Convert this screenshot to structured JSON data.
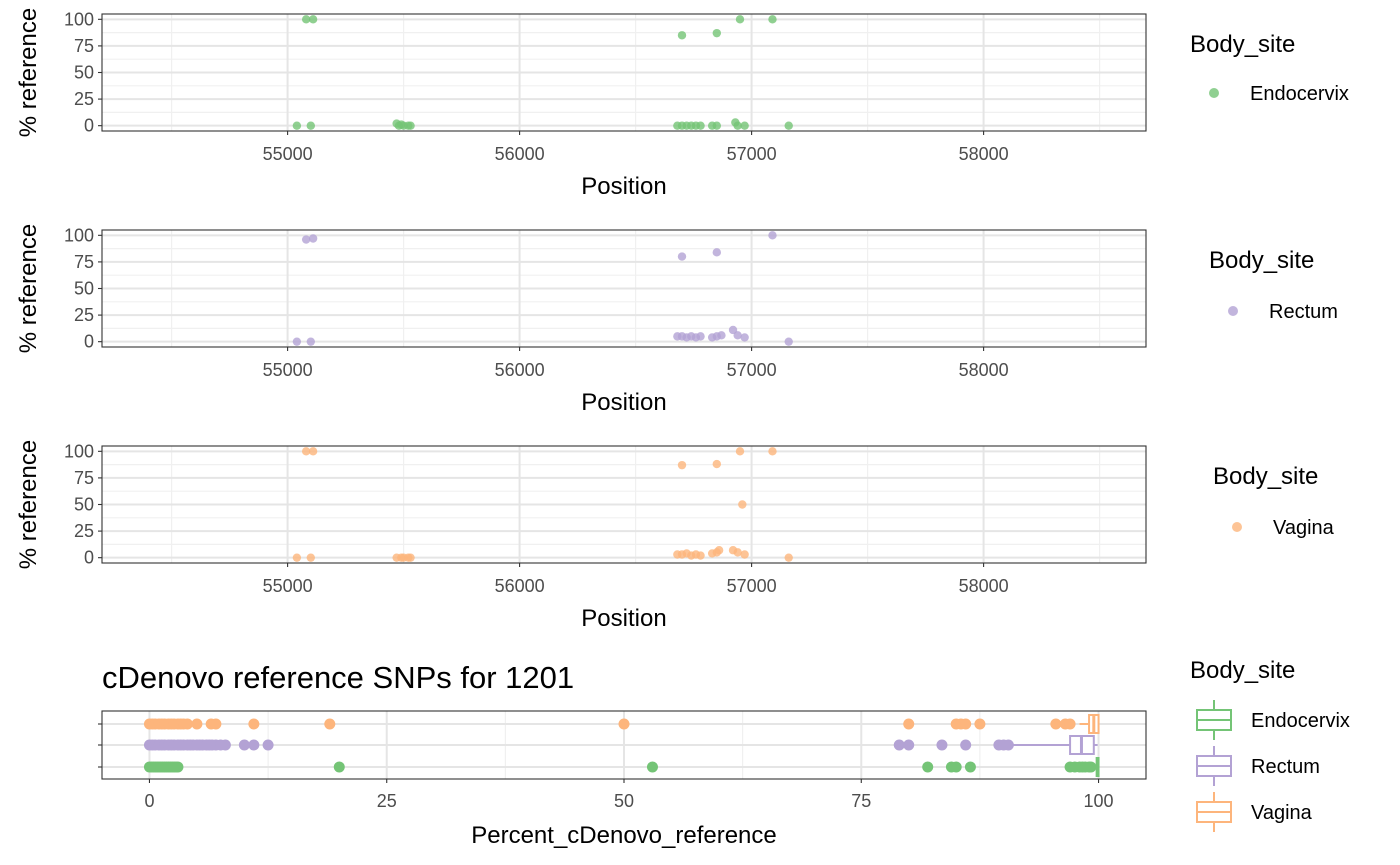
{
  "colors": {
    "Endocervix": "#74c476",
    "Rectum": "#b3a2d4",
    "Vagina": "#fdb57c",
    "grid_major": "#e5e5e5",
    "grid_minor": "#f0f0f0",
    "frame": "#333333"
  },
  "chart_data": [
    {
      "type": "scatter",
      "xlabel": "Position",
      "ylabel": "% reference",
      "xlim": [
        54200,
        58700
      ],
      "ylim": [
        -5,
        105
      ],
      "xticks": [
        "55000",
        "56000",
        "57000",
        "58000"
      ],
      "yticks": [
        "0",
        "25",
        "50",
        "75",
        "100"
      ],
      "legend_title": "Body_site",
      "series": [
        {
          "name": "Endocervix",
          "points": [
            [
              55080,
              100
            ],
            [
              55110,
              100
            ],
            [
              56700,
              85
            ],
            [
              56850,
              87
            ],
            [
              56950,
              100
            ],
            [
              57090,
              100
            ],
            [
              55040,
              0
            ],
            [
              55100,
              0
            ],
            [
              55470,
              2
            ],
            [
              55480,
              0
            ],
            [
              55490,
              1
            ],
            [
              55500,
              0
            ],
            [
              55520,
              0
            ],
            [
              55530,
              0
            ],
            [
              56680,
              0
            ],
            [
              56700,
              0
            ],
            [
              56720,
              0
            ],
            [
              56740,
              0
            ],
            [
              56760,
              0
            ],
            [
              56780,
              0
            ],
            [
              56830,
              0
            ],
            [
              56850,
              0
            ],
            [
              56930,
              3
            ],
            [
              56940,
              0
            ],
            [
              56970,
              0
            ],
            [
              57160,
              0
            ]
          ]
        }
      ]
    },
    {
      "type": "scatter",
      "xlabel": "Position",
      "ylabel": "% reference",
      "xlim": [
        54200,
        58700
      ],
      "ylim": [
        -5,
        105
      ],
      "xticks": [
        "55000",
        "56000",
        "57000",
        "58000"
      ],
      "yticks": [
        "0",
        "25",
        "50",
        "75",
        "100"
      ],
      "legend_title": "Body_site",
      "series": [
        {
          "name": "Rectum",
          "points": [
            [
              55080,
              96
            ],
            [
              55110,
              97
            ],
            [
              56700,
              80
            ],
            [
              56850,
              84
            ],
            [
              57090,
              100
            ],
            [
              55040,
              0
            ],
            [
              55100,
              0
            ],
            [
              56680,
              5
            ],
            [
              56700,
              5
            ],
            [
              56720,
              4
            ],
            [
              56740,
              5
            ],
            [
              56760,
              4
            ],
            [
              56780,
              5
            ],
            [
              56830,
              4
            ],
            [
              56850,
              5
            ],
            [
              56870,
              6
            ],
            [
              56920,
              11
            ],
            [
              56940,
              6
            ],
            [
              56970,
              4
            ],
            [
              57160,
              0
            ]
          ]
        }
      ]
    },
    {
      "type": "scatter",
      "xlabel": "Position",
      "ylabel": "% reference",
      "xlim": [
        54200,
        58700
      ],
      "ylim": [
        -5,
        105
      ],
      "xticks": [
        "55000",
        "56000",
        "57000",
        "58000"
      ],
      "yticks": [
        "0",
        "25",
        "50",
        "75",
        "100"
      ],
      "legend_title": "Body_site",
      "series": [
        {
          "name": "Vagina",
          "points": [
            [
              55080,
              100
            ],
            [
              55110,
              100
            ],
            [
              56700,
              87
            ],
            [
              56850,
              88
            ],
            [
              56950,
              100
            ],
            [
              57090,
              100
            ],
            [
              56960,
              50
            ],
            [
              55040,
              0
            ],
            [
              55100,
              0
            ],
            [
              55470,
              0
            ],
            [
              55490,
              0
            ],
            [
              55500,
              0
            ],
            [
              55520,
              0
            ],
            [
              55530,
              0
            ],
            [
              56680,
              3
            ],
            [
              56700,
              3
            ],
            [
              56720,
              4
            ],
            [
              56740,
              2
            ],
            [
              56760,
              3
            ],
            [
              56780,
              2
            ],
            [
              56830,
              4
            ],
            [
              56850,
              5
            ],
            [
              56860,
              7
            ],
            [
              56920,
              7
            ],
            [
              56940,
              5
            ],
            [
              56970,
              3
            ],
            [
              57160,
              0
            ]
          ]
        }
      ]
    },
    {
      "type": "box",
      "title": "cDenovo reference SNPs for 1201",
      "xlabel": "Percent_cDenovo_reference",
      "xlim": [
        -5,
        105
      ],
      "xticks": [
        "0",
        "25",
        "50",
        "75",
        "100"
      ],
      "legend_title": "Body_site",
      "categories": [
        "Endocervix",
        "Rectum",
        "Vagina"
      ],
      "series": [
        {
          "name": "Endocervix",
          "box": {
            "q1": 99.8,
            "median": 99.9,
            "q3": 100,
            "whisker_low": 99.7,
            "whisker_high": 100
          },
          "outliers": [
            0,
            0.2,
            0.4,
            0.6,
            0.8,
            1,
            1.2,
            1.4,
            1.6,
            1.8,
            2,
            2.2,
            2.4,
            2.6,
            2.8,
            3,
            20,
            53,
            82,
            84.5,
            85,
            86.5,
            97,
            97.5,
            98,
            98.3,
            98.6,
            99,
            99.2
          ]
        },
        {
          "name": "Rectum",
          "box": {
            "q1": 97,
            "median": 98.2,
            "q3": 99.5,
            "whisker_low": 91,
            "whisker_high": 99.9
          },
          "outliers": [
            0,
            0.3,
            0.6,
            1,
            1.3,
            1.6,
            2,
            2.3,
            2.6,
            3,
            3.3,
            3.6,
            4,
            4.3,
            4.6,
            5,
            5.3,
            5.6,
            6,
            6.3,
            6.6,
            7,
            7.5,
            8,
            10,
            11,
            12.5,
            79,
            80,
            83.5,
            86,
            89.5,
            90,
            90.5
          ]
        },
        {
          "name": "Vagina",
          "box": {
            "q1": 99,
            "median": 99.5,
            "q3": 100,
            "whisker_low": 98,
            "whisker_high": 100
          },
          "outliers": [
            0,
            0.3,
            0.6,
            1,
            1.3,
            1.6,
            2,
            2.3,
            2.6,
            3,
            3.3,
            3.6,
            4,
            5,
            6.5,
            7,
            11,
            19,
            50,
            80,
            85,
            85.5,
            86,
            87.5,
            95.5,
            96.5,
            97
          ]
        }
      ]
    }
  ]
}
